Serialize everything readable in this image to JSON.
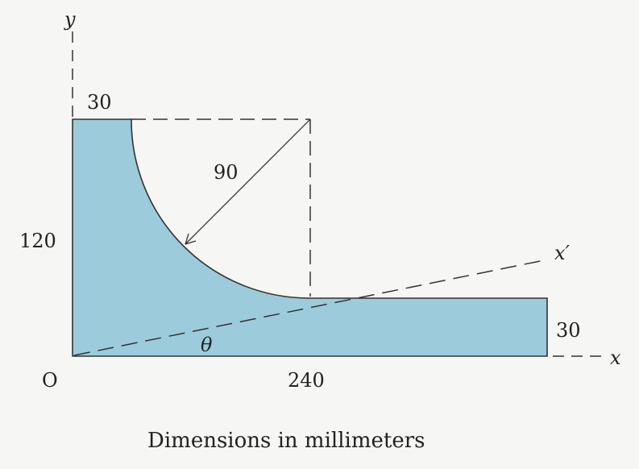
{
  "labels": {
    "y_axis": "y",
    "x_axis": "x",
    "x_prime_axis": "x′",
    "origin": "O",
    "angle": "θ",
    "top_width": "30",
    "radius": "90",
    "height": "120",
    "length": "240",
    "bottom_thickness": "30"
  },
  "caption": "Dimensions in millimeters",
  "colors": {
    "fill": "#9ccbdc",
    "stroke": "#333333"
  }
}
